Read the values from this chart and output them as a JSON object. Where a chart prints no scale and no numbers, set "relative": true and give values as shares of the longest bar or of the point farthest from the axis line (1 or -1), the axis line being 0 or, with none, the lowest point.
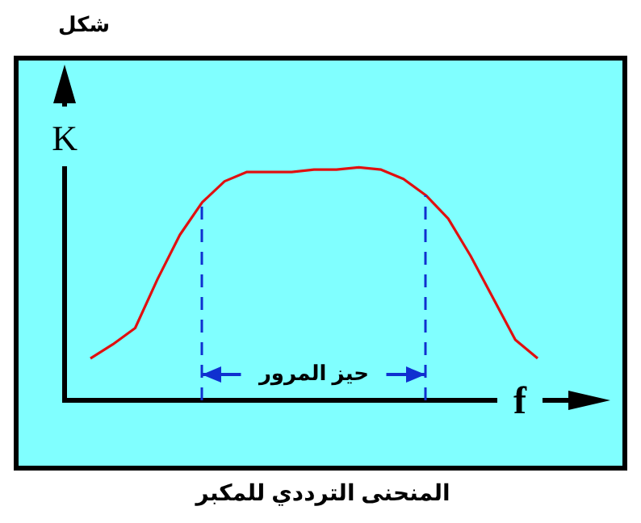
{
  "chart_data": {
    "type": "line",
    "title": "المنحنى الترددي للمكبر",
    "xlabel": "f",
    "ylabel": "K",
    "relative": true,
    "marker": "none",
    "categories": [
      null,
      null,
      null,
      null,
      null,
      null,
      null,
      null,
      null,
      null,
      null,
      null,
      null,
      null,
      null,
      null,
      null,
      null,
      null,
      null,
      null
    ],
    "series": [
      {
        "color": "#e01010",
        "values": [
          0.18,
          0.24,
          0.31,
          0.52,
          0.71,
          0.85,
          0.94,
          0.98,
          0.98,
          0.98,
          0.99,
          0.99,
          1.0,
          0.99,
          0.95,
          0.88,
          0.78,
          0.62,
          0.44,
          0.26,
          0.18
        ]
      }
    ],
    "annotations": [
      "شكل",
      "حيز المرور"
    ]
  }
}
